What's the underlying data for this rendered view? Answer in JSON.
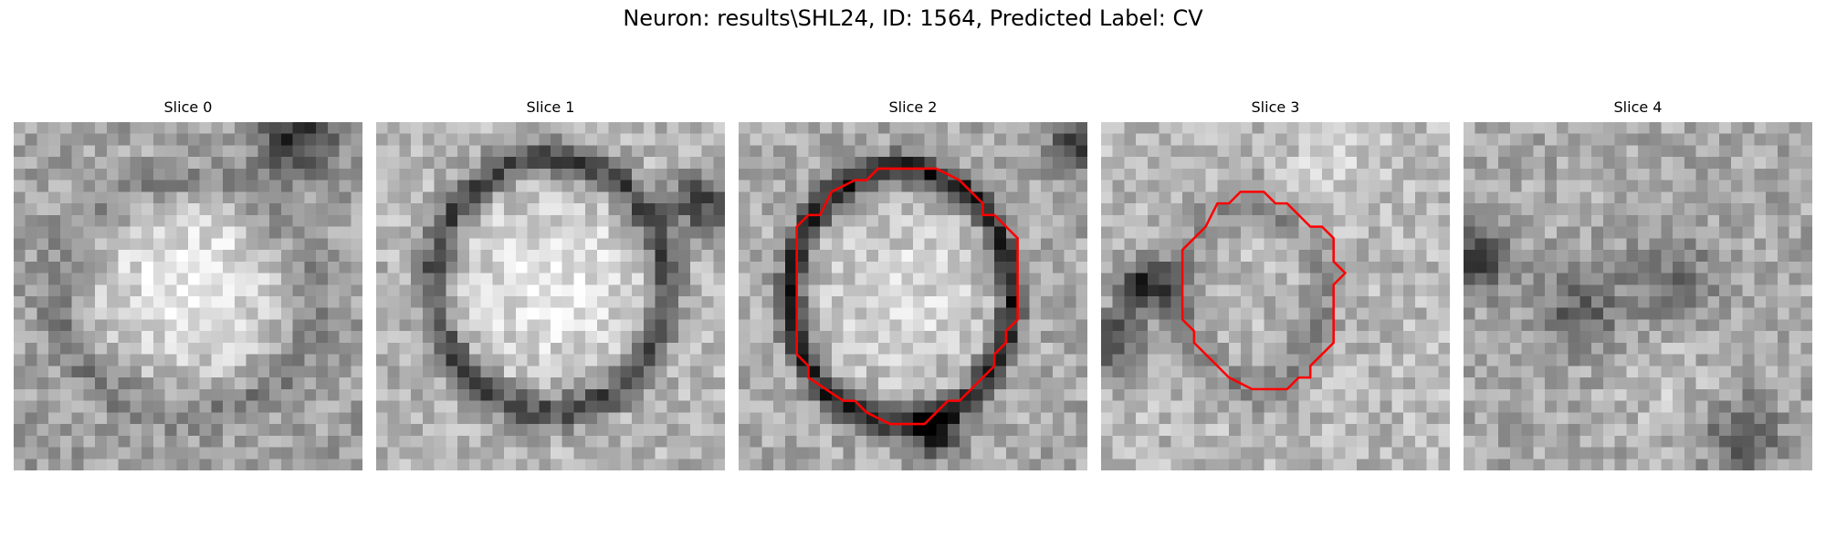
{
  "figure": {
    "title": "Neuron: results\\SHL24, ID: 1564, Predicted Label: CV"
  },
  "slices": [
    {
      "label": "Slice 0",
      "has_contour": false
    },
    {
      "label": "Slice 1",
      "has_contour": false
    },
    {
      "label": "Slice 2",
      "has_contour": true
    },
    {
      "label": "Slice 3",
      "has_contour": true
    },
    {
      "label": "Slice 4",
      "has_contour": false
    }
  ],
  "colors": {
    "contour": "#ff0000",
    "background": "#ffffff"
  }
}
